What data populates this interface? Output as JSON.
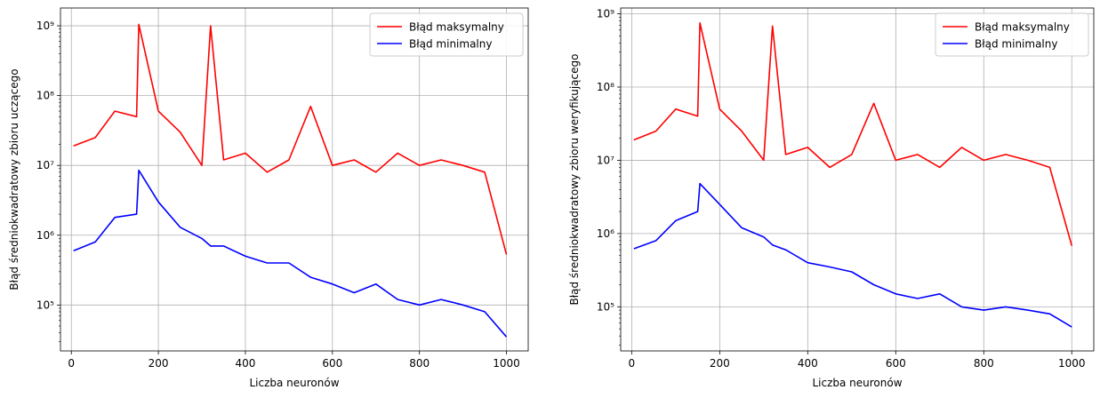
{
  "chart_data": [
    {
      "type": "line",
      "xlabel": "Liczba neuronów",
      "ylabel": "Błąd średniokwadratowy zbioru uczącego",
      "xlim": [
        -25,
        1050
      ],
      "ylim": [
        22000,
        1800000000
      ],
      "yscale": "log",
      "grid": true,
      "legend_position": "top-right",
      "x_ticks": [
        0,
        200,
        400,
        600,
        800,
        1000
      ],
      "x_tick_labels": [
        "0",
        "200",
        "400",
        "600",
        "800",
        "1000"
      ],
      "y_ticks": [
        100000,
        1000000,
        10000000,
        100000000,
        1000000000
      ],
      "y_tick_labels": [
        "10⁵",
        "10⁶",
        "10⁷",
        "10⁸",
        "10⁹"
      ],
      "x": [
        5,
        55,
        100,
        150,
        155,
        200,
        250,
        300,
        320,
        350,
        400,
        450,
        500,
        550,
        600,
        650,
        700,
        750,
        800,
        850,
        900,
        950,
        1000
      ],
      "series": [
        {
          "name": "Błąd maksymalny",
          "color": "#ff0000",
          "values": [
            19000000,
            25000000,
            60000000,
            50000000,
            1050000000,
            60000000,
            30000000,
            10000000,
            1000000000,
            12000000,
            15000000,
            8000000,
            12000000,
            70000000,
            10000000,
            12000000,
            8000000,
            15000000,
            10000000,
            12000000,
            10000000,
            8000000,
            530000
          ]
        },
        {
          "name": "Błąd minimalny",
          "color": "#0000ff",
          "values": [
            600000,
            800000,
            1800000,
            2000000,
            8500000,
            3000000,
            1300000,
            900000,
            700000,
            700000,
            500000,
            400000,
            400000,
            250000,
            200000,
            150000,
            200000,
            120000,
            100000,
            120000,
            100000,
            80000,
            35000
          ]
        }
      ]
    },
    {
      "type": "line",
      "xlabel": "Liczba neuronów",
      "ylabel": "Błąd średniokwadratowy zbioru weryfikującego",
      "xlim": [
        -25,
        1050
      ],
      "ylim": [
        25000,
        1200000000
      ],
      "yscale": "log",
      "grid": true,
      "legend_position": "top-right",
      "x_ticks": [
        0,
        200,
        400,
        600,
        800,
        1000
      ],
      "x_tick_labels": [
        "0",
        "200",
        "400",
        "600",
        "800",
        "1000"
      ],
      "y_ticks": [
        100000,
        1000000,
        10000000,
        100000000,
        1000000000
      ],
      "y_tick_labels": [
        "10⁵",
        "10⁶",
        "10⁷",
        "10⁸",
        "10⁹"
      ],
      "x": [
        5,
        55,
        100,
        150,
        155,
        200,
        250,
        300,
        320,
        350,
        400,
        450,
        500,
        550,
        600,
        650,
        700,
        750,
        800,
        850,
        900,
        950,
        1000
      ],
      "series": [
        {
          "name": "Błąd maksymalny",
          "color": "#ff0000",
          "values": [
            19000000,
            25000000,
            50000000,
            40000000,
            750000000,
            50000000,
            25000000,
            10000000,
            680000000,
            12000000,
            15000000,
            8000000,
            12000000,
            60000000,
            10000000,
            12000000,
            8000000,
            15000000,
            10000000,
            12000000,
            10000000,
            8000000,
            680000
          ]
        },
        {
          "name": "Błąd minimalny",
          "color": "#0000ff",
          "values": [
            620000,
            800000,
            1500000,
            2000000,
            4800000,
            2500000,
            1200000,
            900000,
            700000,
            600000,
            400000,
            350000,
            300000,
            200000,
            150000,
            130000,
            150000,
            100000,
            90000,
            100000,
            90000,
            80000,
            53000
          ]
        }
      ]
    }
  ]
}
